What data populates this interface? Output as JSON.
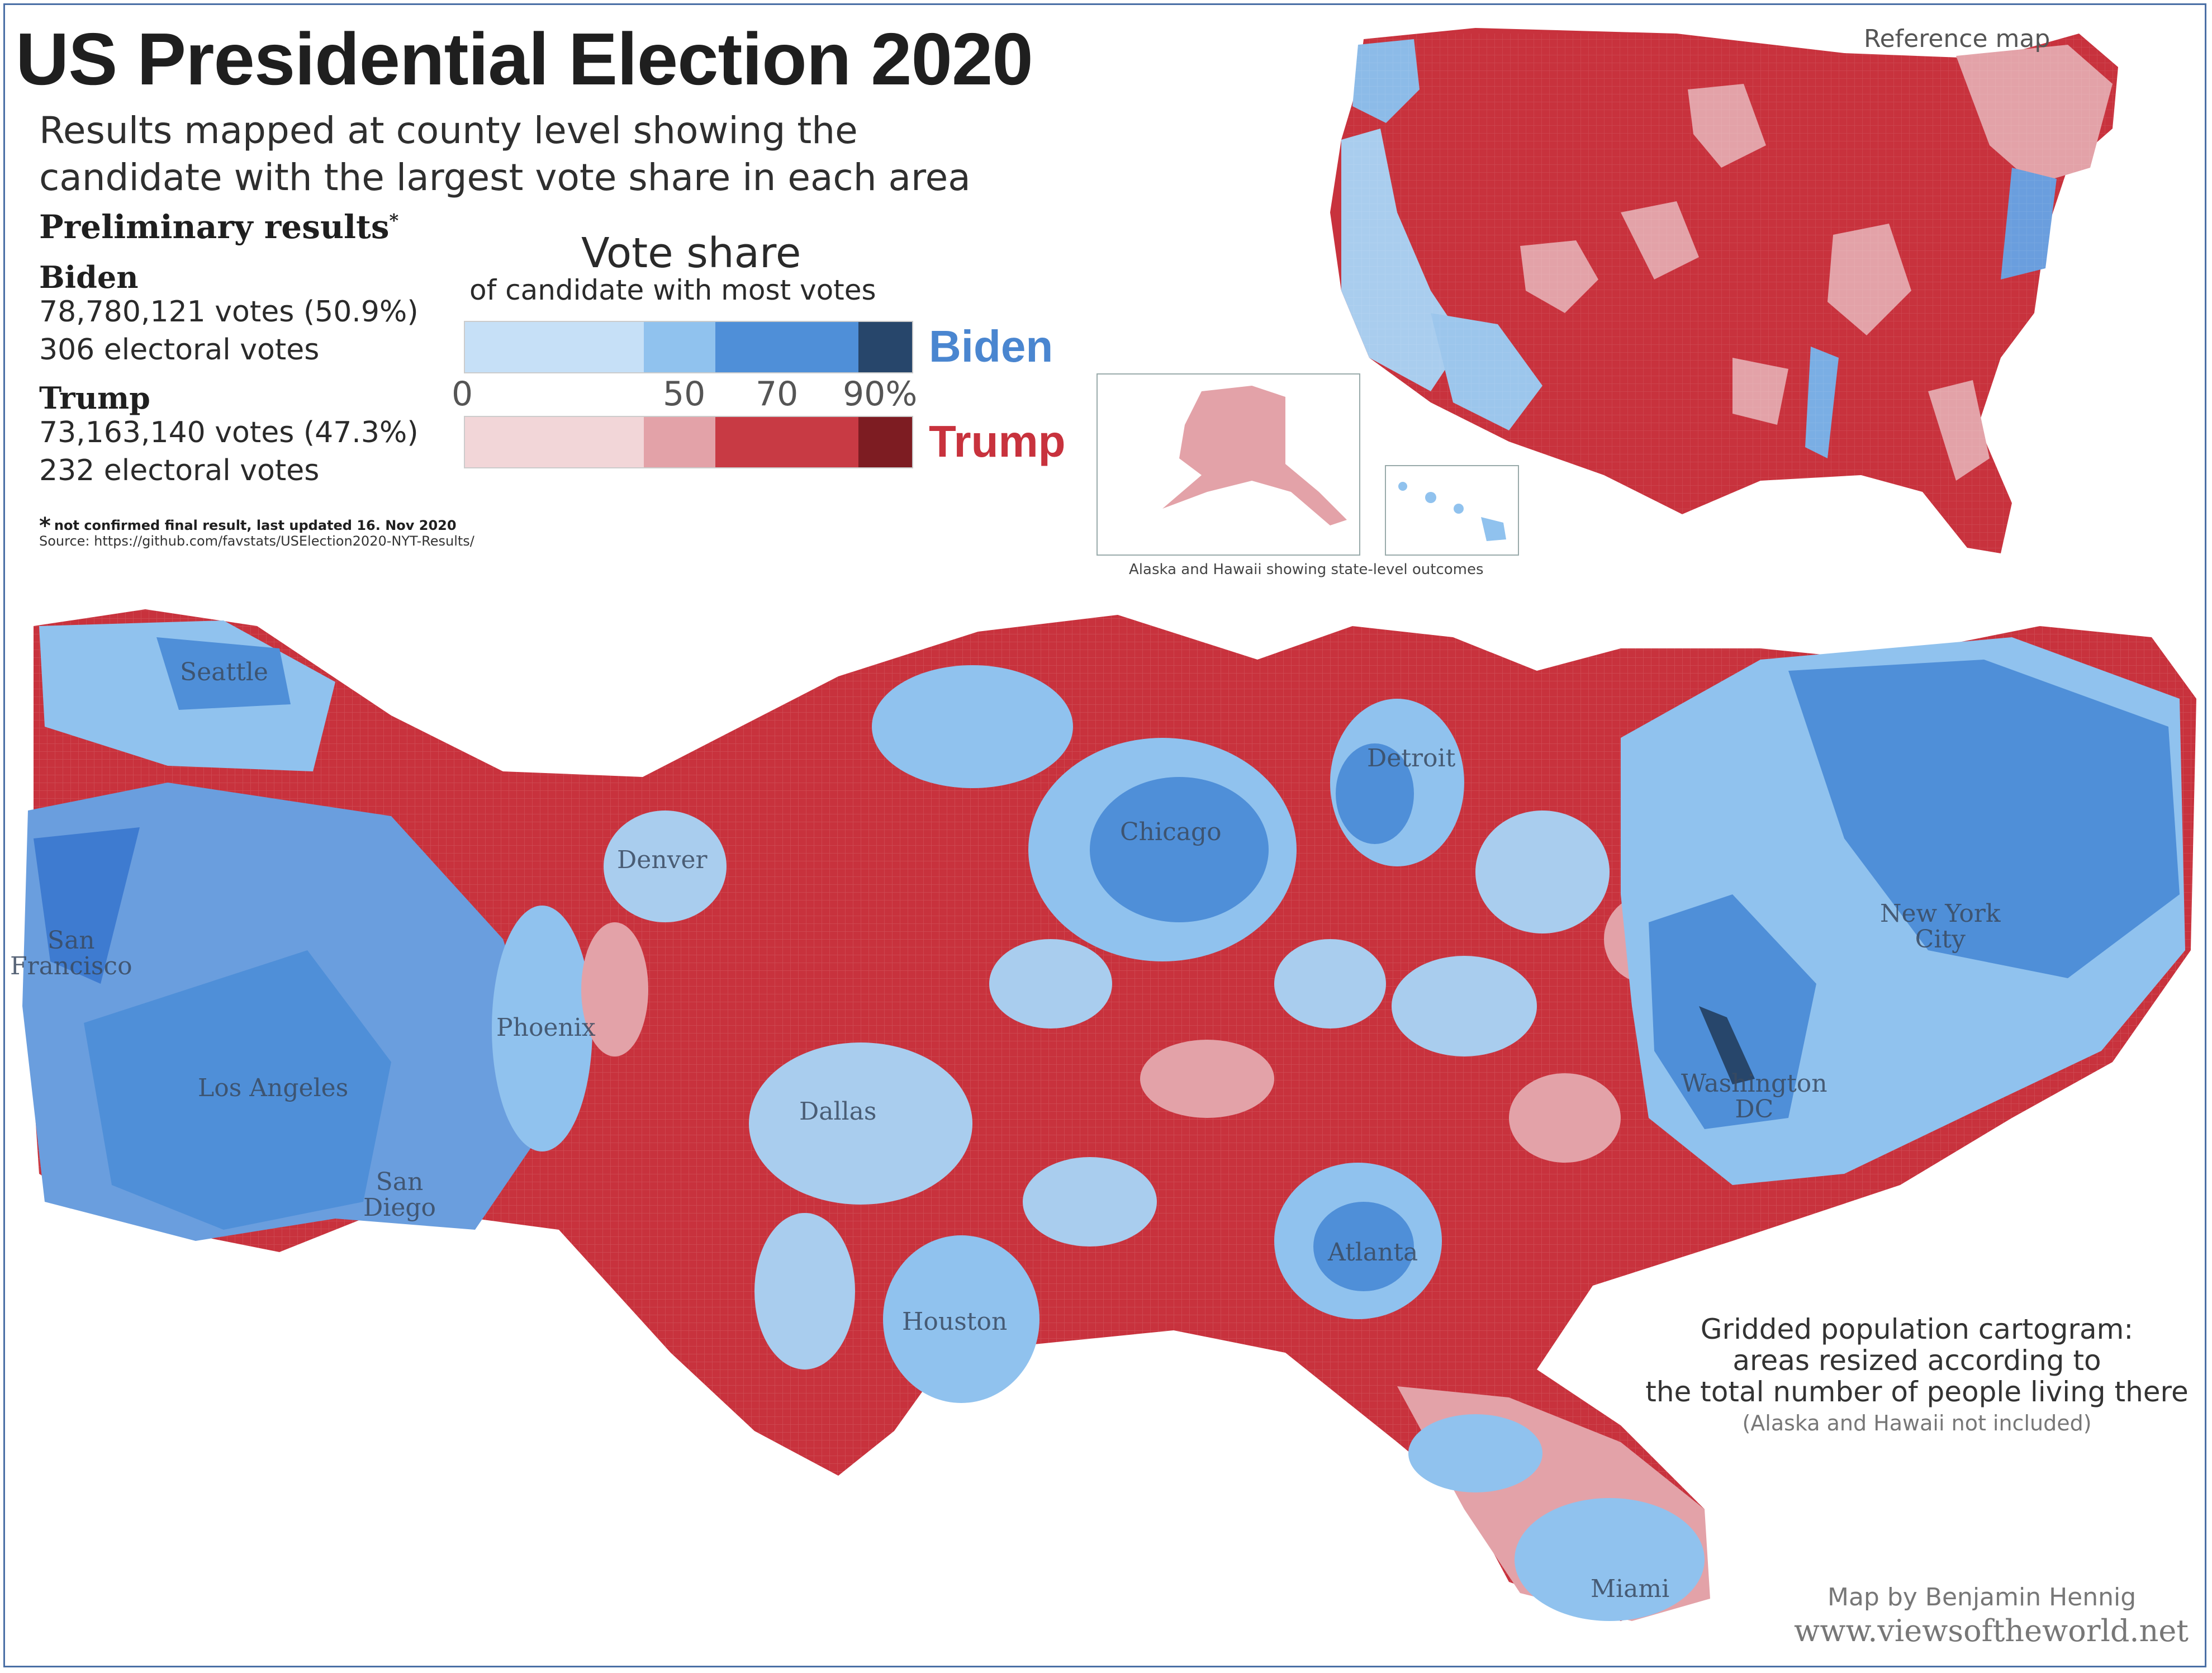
{
  "title": "US Presidential Election 2020",
  "subtitle_line1": "Results mapped at county level showing the",
  "subtitle_line2": "candidate with the largest vote share in each area",
  "preliminary_label": "Preliminary results",
  "preliminary_mark": "*",
  "biden": {
    "name": "Biden",
    "votes": "78,780,121 votes (50.9%)",
    "electoral": "306 electoral votes"
  },
  "trump": {
    "name": "Trump",
    "votes": "73,163,140 votes (47.3%)",
    "electoral": "232 electoral votes"
  },
  "footnote_mark": "*",
  "footnote": "not confirmed final result, last updated 16. Nov 2020",
  "source": "Source: https://github.com/favstats/USElection2020-NYT-Results/",
  "legend": {
    "title": "Vote share",
    "subtitle": "of candidate with most votes",
    "ticks": [
      "0",
      "50",
      "70",
      "90%"
    ],
    "biden_label": "Biden",
    "trump_label": "Trump",
    "biden_colors": [
      "#c6e0f7",
      "#90c2ee",
      "#4f8fd8",
      "#27466b"
    ],
    "trump_colors": [
      "#f2d6d8",
      "#e3a2a8",
      "#c83a44",
      "#7d1c22"
    ]
  },
  "reference_map_label": "Reference map",
  "alaska_hawaii_caption": "Alaska and Hawaii showing state-level outcomes",
  "cities": {
    "seattle": "Seattle",
    "san_francisco": "San\nFrancisco",
    "los_angeles": "Los Angeles",
    "san_diego": "San\nDiego",
    "phoenix": "Phoenix",
    "denver": "Denver",
    "dallas": "Dallas",
    "houston": "Houston",
    "chicago": "Chicago",
    "detroit": "Detroit",
    "atlanta": "Atlanta",
    "washington": "Washington\nDC",
    "new_york": "New York\nCity",
    "miami": "Miami"
  },
  "cartogram_note": {
    "line1": "Gridded population cartogram:",
    "line2": "areas resized according to",
    "line3": "the total number of people living there",
    "line4": "(Alaska and Hawaii not included)"
  },
  "credit": "Map by Benjamin Hennig",
  "website": "www.viewsoftheworld.net"
}
